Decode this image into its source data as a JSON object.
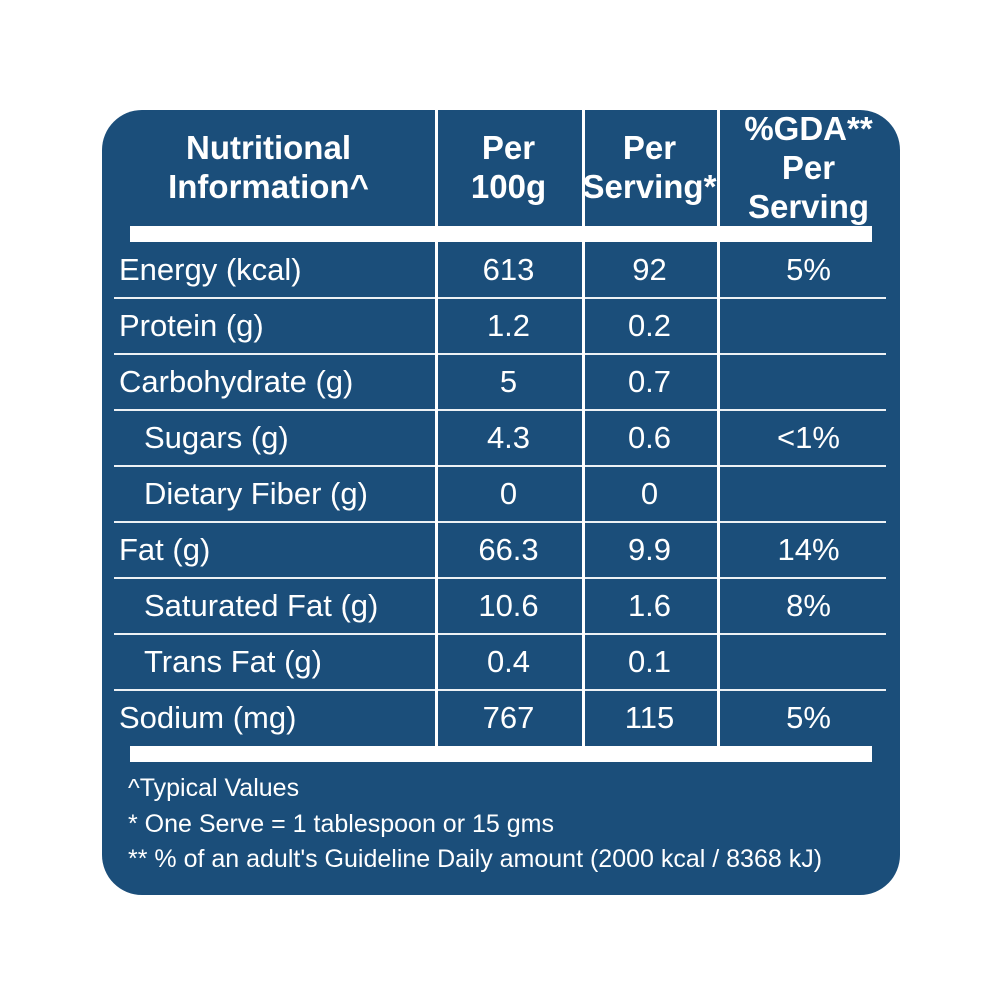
{
  "colors": {
    "card_bg": "#1b4e7a",
    "text": "#ffffff",
    "divider": "#ffffff",
    "page_bg": "#ffffff"
  },
  "table": {
    "header": {
      "name": {
        "line1": "Nutritional",
        "line2": "Information^"
      },
      "per100g": {
        "line1": "Per",
        "line2": "100g"
      },
      "perServing": {
        "line1": "Per",
        "line2": "Serving*"
      },
      "gda": {
        "line1": "%GDA**",
        "line2": "Per Serving"
      }
    },
    "rows": [
      {
        "label": "Energy (kcal)",
        "per100g": "613",
        "perServing": "92",
        "gda": "5%"
      },
      {
        "label": "Protein (g)",
        "per100g": "1.2",
        "perServing": "0.2",
        "gda": ""
      },
      {
        "label": "Carbohydrate (g)",
        "per100g": "5",
        "perServing": "0.7",
        "gda": ""
      },
      {
        "label": "Sugars (g)",
        "per100g": "4.3",
        "perServing": "0.6",
        "gda": "<1%"
      },
      {
        "label": "Dietary Fiber (g)",
        "per100g": "0",
        "perServing": "0",
        "gda": ""
      },
      {
        "label": "Fat (g)",
        "per100g": "66.3",
        "perServing": "9.9",
        "gda": "14%"
      },
      {
        "label": "Saturated Fat (g)",
        "per100g": "10.6",
        "perServing": "1.6",
        "gda": "8%"
      },
      {
        "label": "Trans Fat (g)",
        "per100g": "0.4",
        "perServing": "0.1",
        "gda": ""
      },
      {
        "label": "Sodium (mg)",
        "per100g": "767",
        "perServing": "115",
        "gda": "5%"
      }
    ]
  },
  "footnotes": {
    "typical_values": "^Typical Values",
    "one_serve": "* One Serve = 1 tablespoon or 15 gms",
    "gda_note": "** % of an adult's Guideline Daily amount (2000 kcal / 8368 kJ)"
  }
}
